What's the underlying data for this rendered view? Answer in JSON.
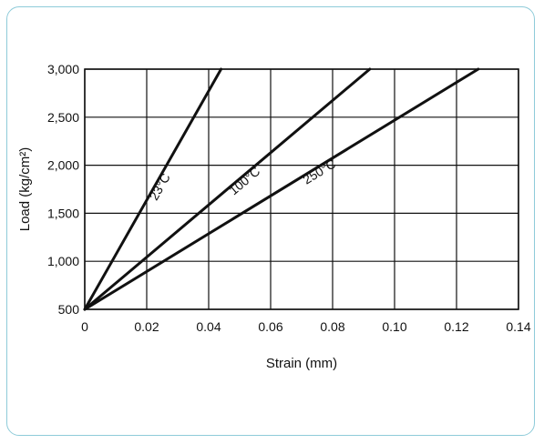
{
  "chart_data": {
    "type": "line",
    "title": "",
    "xlabel": "Strain (mm)",
    "ylabel": "Load (kg/cm²)",
    "xlim": [
      0,
      0.14
    ],
    "ylim": [
      500,
      3000
    ],
    "x_ticks": [
      "0",
      "0.02",
      "0.04",
      "0.06",
      "0.08",
      "0.10",
      "0.12",
      "0.14"
    ],
    "x_tick_values": [
      0,
      0.02,
      0.04,
      0.06,
      0.08,
      0.1,
      0.12,
      0.14
    ],
    "y_ticks": [
      "500",
      "1,000",
      "1,500",
      "2,000",
      "2,500",
      "3,000"
    ],
    "y_tick_values": [
      500,
      1000,
      1500,
      2000,
      2500,
      3000
    ],
    "grid": true,
    "series": [
      {
        "name": "23°C",
        "x": [
          0,
          0.044
        ],
        "y": [
          500,
          3000
        ]
      },
      {
        "name": "100°C",
        "x": [
          0,
          0.092
        ],
        "y": [
          500,
          3000
        ]
      },
      {
        "name": "250°C",
        "x": [
          0,
          0.127
        ],
        "y": [
          500,
          3000
        ]
      }
    ],
    "colors": {
      "line": "#111111",
      "frame": "#8ecbd9"
    }
  }
}
